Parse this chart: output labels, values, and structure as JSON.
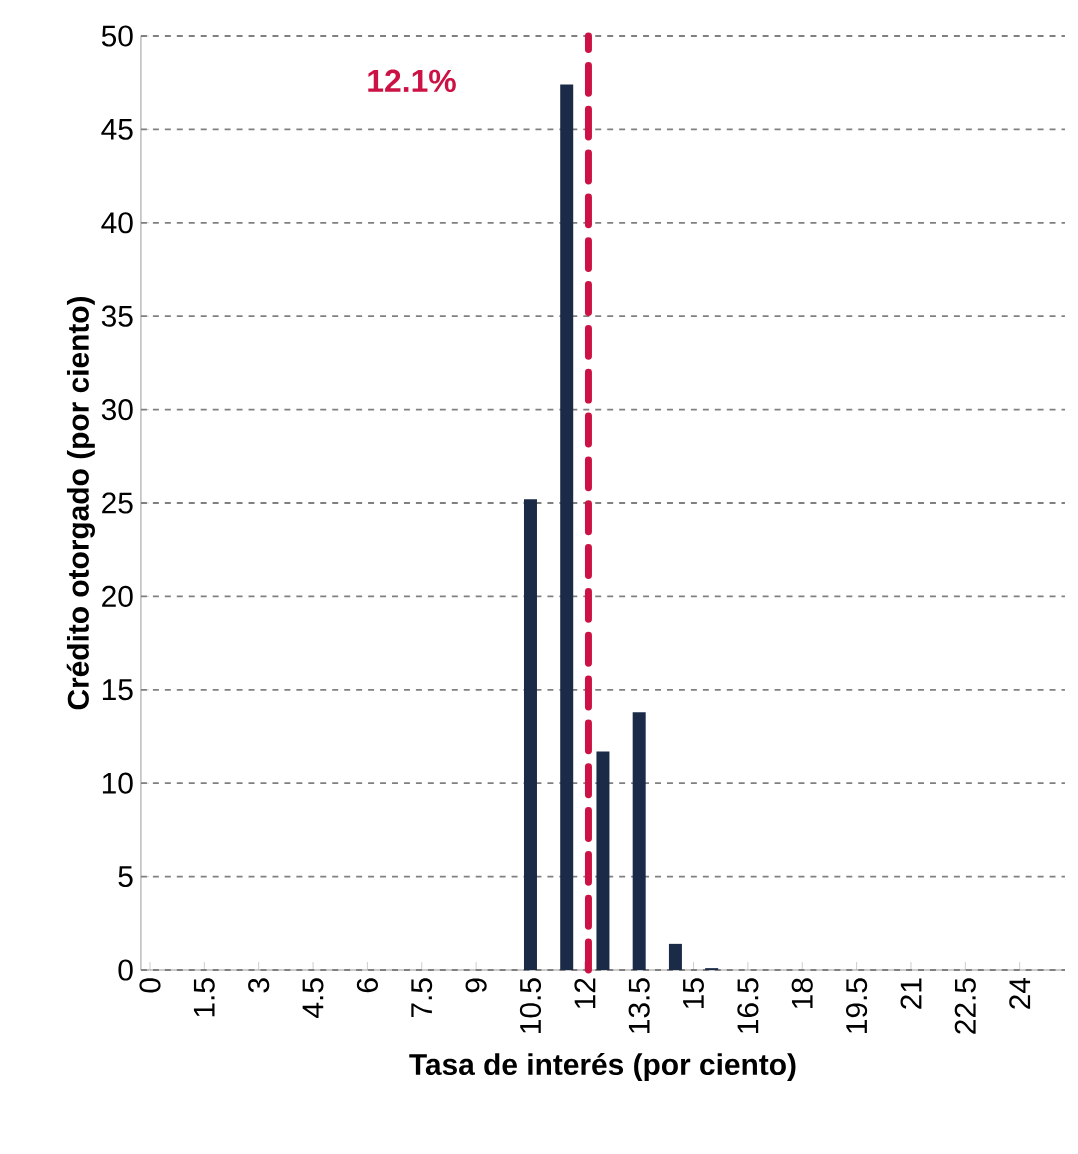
{
  "chart_data": {
    "type": "bar",
    "xlabel": "Tasa de interés (por ciento)",
    "ylabel": "Crédito otorgado (por ciento)",
    "x": [
      0,
      0.5,
      1,
      1.5,
      2,
      2.5,
      3,
      3.5,
      4,
      4.5,
      5,
      5.5,
      6,
      6.5,
      7,
      7.5,
      8,
      8.5,
      9,
      9.5,
      10,
      10.5,
      11,
      11.5,
      12,
      12.5,
      13,
      13.5,
      14,
      14.5,
      15,
      15.5,
      16,
      16.5,
      17,
      17.5,
      18,
      18.5,
      19,
      19.5,
      20,
      20.5,
      21,
      21.5,
      22,
      22.5,
      23,
      23.5,
      24,
      24.5,
      25
    ],
    "values": [
      0,
      0,
      0,
      0,
      0,
      0,
      0,
      0,
      0,
      0,
      0,
      0,
      0,
      0,
      0,
      0,
      0,
      0,
      0,
      0,
      0,
      25.2,
      0,
      47.4,
      0,
      11.7,
      0,
      13.8,
      0,
      1.4,
      0,
      0.1,
      0,
      0,
      0,
      0,
      0,
      0,
      0,
      0,
      0,
      0,
      0,
      0,
      0,
      0,
      0,
      0,
      0,
      0,
      0
    ],
    "color": "#1b2a47",
    "xlim": [
      -0.25,
      25.25
    ],
    "xticks": [
      0,
      1.5,
      3,
      4.5,
      6,
      7.5,
      9,
      10.5,
      12,
      13.5,
      15,
      16.5,
      18,
      19.5,
      21,
      22.5,
      24
    ],
    "ylim": [
      0,
      50
    ],
    "yticks": [
      0,
      5,
      10,
      15,
      20,
      25,
      30,
      35,
      40,
      45,
      50
    ],
    "grid": "y",
    "ref_lines": [
      {
        "axis": "x",
        "value": 12.1,
        "label": "12.1%",
        "color": "#cc1144",
        "line_style": "dashed"
      }
    ]
  }
}
